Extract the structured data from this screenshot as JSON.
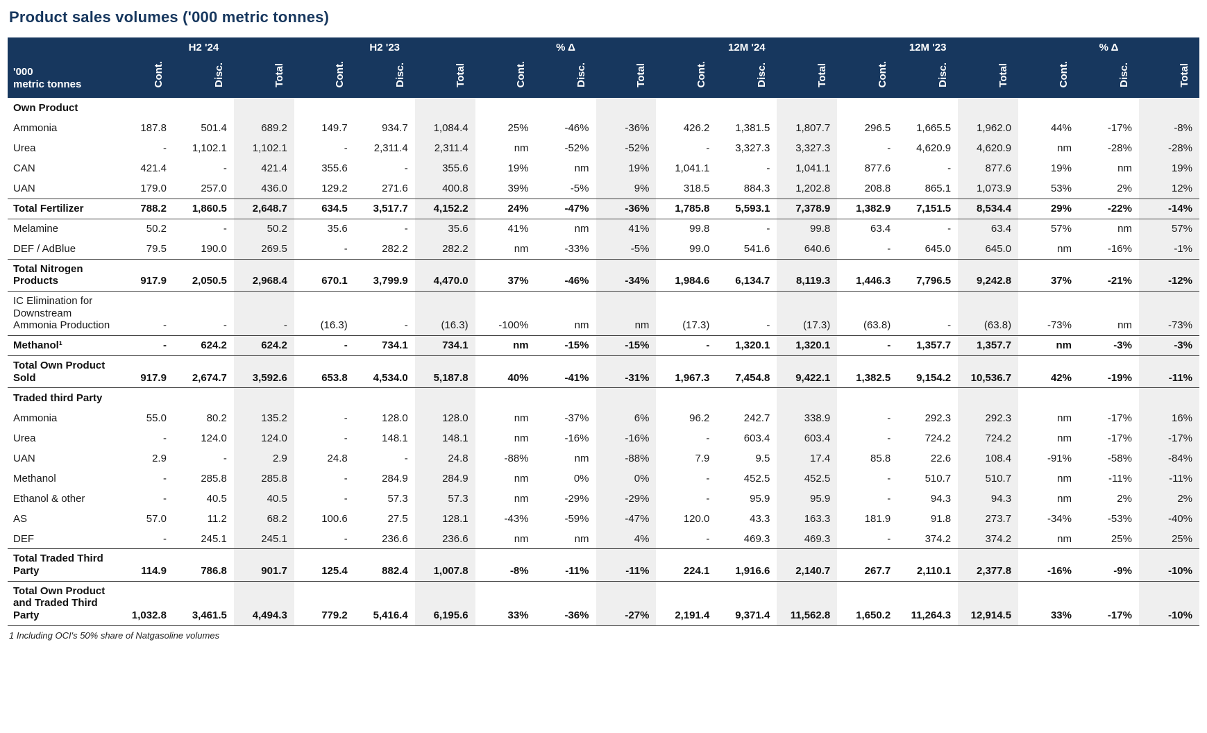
{
  "title": "Product sales volumes ('000 metric tonnes)",
  "footnote": "1 Including OCI's 50% share of Natgasoline volumes",
  "colors": {
    "header_bg": "#17375E",
    "header_text": "#ffffff",
    "stripe": "#EFEFEF",
    "title_text": "#17375E"
  },
  "header": {
    "row_label": "'000\nmetric tonnes",
    "groups": [
      "H2 '24",
      "H2 '23",
      "% Δ",
      "12M '24",
      "12M '23",
      "% Δ"
    ],
    "subcolumns": [
      "Cont.",
      "Disc.",
      "Total"
    ]
  },
  "rows": [
    {
      "label": "Own Product",
      "type": "section",
      "values": []
    },
    {
      "label": "Ammonia",
      "type": "data",
      "values": [
        "187.8",
        "501.4",
        "689.2",
        "149.7",
        "934.7",
        "1,084.4",
        "25%",
        "-46%",
        "-36%",
        "426.2",
        "1,381.5",
        "1,807.7",
        "296.5",
        "1,665.5",
        "1,962.0",
        "44%",
        "-17%",
        "-8%"
      ]
    },
    {
      "label": "Urea",
      "type": "data",
      "values": [
        "-",
        "1,102.1",
        "1,102.1",
        "-",
        "2,311.4",
        "2,311.4",
        "nm",
        "-52%",
        "-52%",
        "-",
        "3,327.3",
        "3,327.3",
        "-",
        "4,620.9",
        "4,620.9",
        "nm",
        "-28%",
        "-28%"
      ]
    },
    {
      "label": "CAN",
      "type": "data",
      "values": [
        "421.4",
        "-",
        "421.4",
        "355.6",
        "-",
        "355.6",
        "19%",
        "nm",
        "19%",
        "1,041.1",
        "-",
        "1,041.1",
        "877.6",
        "-",
        "877.6",
        "19%",
        "nm",
        "19%"
      ]
    },
    {
      "label": "UAN",
      "type": "data",
      "values": [
        "179.0",
        "257.0",
        "436.0",
        "129.2",
        "271.6",
        "400.8",
        "39%",
        "-5%",
        "9%",
        "318.5",
        "884.3",
        "1,202.8",
        "208.8",
        "865.1",
        "1,073.9",
        "53%",
        "2%",
        "12%"
      ]
    },
    {
      "label": "Total Fertilizer",
      "type": "total",
      "values": [
        "788.2",
        "1,860.5",
        "2,648.7",
        "634.5",
        "3,517.7",
        "4,152.2",
        "24%",
        "-47%",
        "-36%",
        "1,785.8",
        "5,593.1",
        "7,378.9",
        "1,382.9",
        "7,151.5",
        "8,534.4",
        "29%",
        "-22%",
        "-14%"
      ]
    },
    {
      "label": "Melamine",
      "type": "data",
      "values": [
        "50.2",
        "-",
        "50.2",
        "35.6",
        "-",
        "35.6",
        "41%",
        "nm",
        "41%",
        "99.8",
        "-",
        "99.8",
        "63.4",
        "-",
        "63.4",
        "57%",
        "nm",
        "57%"
      ]
    },
    {
      "label": "DEF / AdBlue",
      "type": "data",
      "values": [
        "79.5",
        "190.0",
        "269.5",
        "-",
        "282.2",
        "282.2",
        "nm",
        "-33%",
        "-5%",
        "99.0",
        "541.6",
        "640.6",
        "-",
        "645.0",
        "645.0",
        "nm",
        "-16%",
        "-1%"
      ]
    },
    {
      "label": "Total Nitrogen Products",
      "type": "total",
      "values": [
        "917.9",
        "2,050.5",
        "2,968.4",
        "670.1",
        "3,799.9",
        "4,470.0",
        "37%",
        "-46%",
        "-34%",
        "1,984.6",
        "6,134.7",
        "8,119.3",
        "1,446.3",
        "7,796.5",
        "9,242.8",
        "37%",
        "-21%",
        "-12%"
      ]
    },
    {
      "label": "IC Elimination for Downstream Ammonia Production",
      "type": "data",
      "values": [
        "-",
        "-",
        "-",
        "(16.3)",
        "-",
        "(16.3)",
        "-100%",
        "nm",
        "nm",
        "(17.3)",
        "-",
        "(17.3)",
        "(63.8)",
        "-",
        "(63.8)",
        "-73%",
        "nm",
        "-73%"
      ]
    },
    {
      "label": "Methanol¹",
      "type": "total",
      "values": [
        "-",
        "624.2",
        "624.2",
        "-",
        "734.1",
        "734.1",
        "nm",
        "-15%",
        "-15%",
        "-",
        "1,320.1",
        "1,320.1",
        "-",
        "1,357.7",
        "1,357.7",
        "nm",
        "-3%",
        "-3%"
      ]
    },
    {
      "label": "Total Own Product Sold",
      "type": "total",
      "values": [
        "917.9",
        "2,674.7",
        "3,592.6",
        "653.8",
        "4,534.0",
        "5,187.8",
        "40%",
        "-41%",
        "-31%",
        "1,967.3",
        "7,454.8",
        "9,422.1",
        "1,382.5",
        "9,154.2",
        "10,536.7",
        "42%",
        "-19%",
        "-11%"
      ]
    },
    {
      "label": "Traded third Party",
      "type": "section",
      "values": []
    },
    {
      "label": "Ammonia",
      "type": "data",
      "values": [
        "55.0",
        "80.2",
        "135.2",
        "-",
        "128.0",
        "128.0",
        "nm",
        "-37%",
        "6%",
        "96.2",
        "242.7",
        "338.9",
        "-",
        "292.3",
        "292.3",
        "nm",
        "-17%",
        "16%"
      ]
    },
    {
      "label": "Urea",
      "type": "data",
      "values": [
        "-",
        "124.0",
        "124.0",
        "-",
        "148.1",
        "148.1",
        "nm",
        "-16%",
        "-16%",
        "-",
        "603.4",
        "603.4",
        "-",
        "724.2",
        "724.2",
        "nm",
        "-17%",
        "-17%"
      ]
    },
    {
      "label": "UAN",
      "type": "data",
      "values": [
        "2.9",
        "-",
        "2.9",
        "24.8",
        "-",
        "24.8",
        "-88%",
        "nm",
        "-88%",
        "7.9",
        "9.5",
        "17.4",
        "85.8",
        "22.6",
        "108.4",
        "-91%",
        "-58%",
        "-84%"
      ]
    },
    {
      "label": "Methanol",
      "type": "data",
      "values": [
        "-",
        "285.8",
        "285.8",
        "-",
        "284.9",
        "284.9",
        "nm",
        "0%",
        "0%",
        "-",
        "452.5",
        "452.5",
        "-",
        "510.7",
        "510.7",
        "nm",
        "-11%",
        "-11%"
      ]
    },
    {
      "label": "Ethanol & other",
      "type": "data",
      "values": [
        "-",
        "40.5",
        "40.5",
        "-",
        "57.3",
        "57.3",
        "nm",
        "-29%",
        "-29%",
        "-",
        "95.9",
        "95.9",
        "-",
        "94.3",
        "94.3",
        "nm",
        "2%",
        "2%"
      ]
    },
    {
      "label": "AS",
      "type": "data",
      "values": [
        "57.0",
        "11.2",
        "68.2",
        "100.6",
        "27.5",
        "128.1",
        "-43%",
        "-59%",
        "-47%",
        "120.0",
        "43.3",
        "163.3",
        "181.9",
        "91.8",
        "273.7",
        "-34%",
        "-53%",
        "-40%"
      ]
    },
    {
      "label": "DEF",
      "type": "data",
      "values": [
        "-",
        "245.1",
        "245.1",
        "-",
        "236.6",
        "236.6",
        "nm",
        "nm",
        "4%",
        "-",
        "469.3",
        "469.3",
        "-",
        "374.2",
        "374.2",
        "nm",
        "25%",
        "25%"
      ]
    },
    {
      "label": "Total Traded Third Party",
      "type": "total",
      "values": [
        "114.9",
        "786.8",
        "901.7",
        "125.4",
        "882.4",
        "1,007.8",
        "-8%",
        "-11%",
        "-11%",
        "224.1",
        "1,916.6",
        "2,140.7",
        "267.7",
        "2,110.1",
        "2,377.8",
        "-16%",
        "-9%",
        "-10%"
      ]
    },
    {
      "label": "Total Own Product and Traded Third Party",
      "type": "total",
      "values": [
        "1,032.8",
        "3,461.5",
        "4,494.3",
        "779.2",
        "5,416.4",
        "6,195.6",
        "33%",
        "-36%",
        "-27%",
        "2,191.4",
        "9,371.4",
        "11,562.8",
        "1,650.2",
        "11,264.3",
        "12,914.5",
        "33%",
        "-17%",
        "-10%"
      ]
    }
  ]
}
